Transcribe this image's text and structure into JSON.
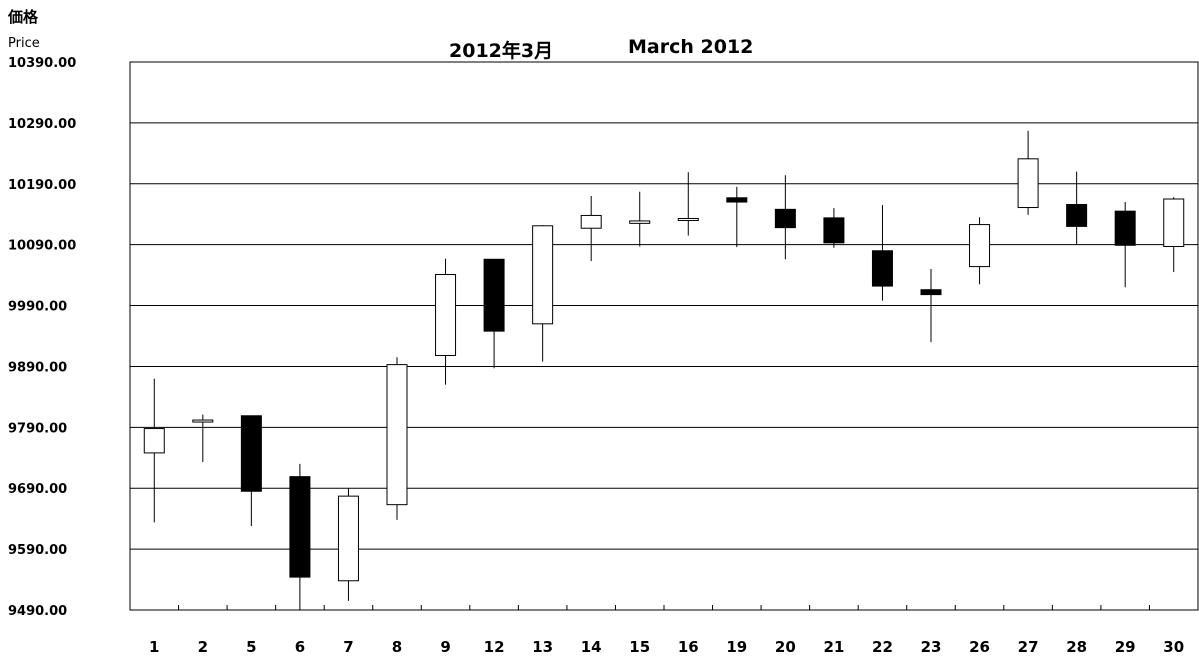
{
  "chart": {
    "ylabel_jp": "価格",
    "ylabel_en": "Price",
    "title_jp": "2012年3月",
    "title_en": "March 2012"
  },
  "chart_data": {
    "type": "candlestick",
    "title": "2012年3月　March 2012",
    "ylabel": "価格 Price",
    "xlabel": "",
    "ylim": [
      9490,
      10390
    ],
    "yticks": [
      "9490.00",
      "9590.00",
      "9690.00",
      "9790.00",
      "9890.00",
      "9990.00",
      "10090.00",
      "10190.00",
      "10290.00",
      "10390.00"
    ],
    "grid": "horizontal",
    "categories": [
      "1",
      "2",
      "5",
      "6",
      "7",
      "8",
      "9",
      "12",
      "13",
      "14",
      "15",
      "16",
      "19",
      "20",
      "21",
      "22",
      "23",
      "26",
      "27",
      "28",
      "29",
      "30"
    ],
    "series": [
      {
        "open": [
          9748,
          9799,
          9809,
          9709,
          9538,
          9663,
          9908,
          10066,
          9960,
          10117,
          10125,
          10131,
          10167,
          10148,
          10134,
          10080,
          10016,
          10054,
          10151,
          10156,
          10145,
          10087
        ],
        "high": [
          9870,
          9811,
          9809,
          9730,
          9690,
          9905,
          10067,
          10066,
          10122,
          10170,
          10177,
          10209,
          10185,
          10204,
          10150,
          10155,
          10050,
          10135,
          10277,
          10210,
          10160,
          10168
        ],
        "low": [
          9634,
          9733,
          9628,
          9490,
          9505,
          9638,
          9860,
          9887,
          9898,
          10063,
          10087,
          10105,
          10086,
          10066,
          10085,
          9998,
          9930,
          10025,
          10139,
          10090,
          10020,
          10045
        ],
        "close": [
          9788,
          9802,
          9685,
          9544,
          9677,
          9893,
          10041,
          9948,
          10121,
          10138,
          10129,
          10133,
          10160,
          10118,
          10093,
          10022,
          10008,
          10123,
          10231,
          10120,
          10089,
          10165
        ]
      }
    ],
    "colors": {
      "up": "#ffffff",
      "down": "#000000",
      "stroke": "#000000"
    }
  }
}
